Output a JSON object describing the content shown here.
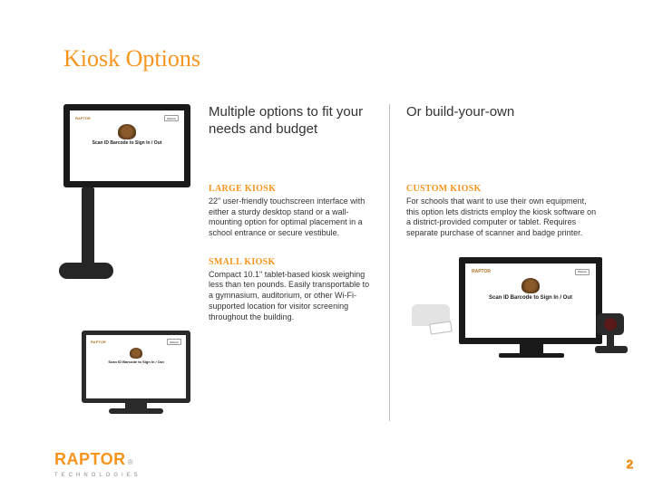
{
  "colors": {
    "accent": "#f7941d",
    "text": "#333333",
    "divider": "#bfbfbf",
    "device_black": "#1a1a1a",
    "background": "#ffffff"
  },
  "title": "Kiosk Options",
  "left_intro": "Multiple options to fit your needs and budget",
  "right_intro": "Or build-your-own",
  "sections": {
    "large": {
      "heading": "LARGE KIOSK",
      "body": "22\" user-friendly touchscreen interface with either a sturdy desktop stand or a wall-mounting option for optimal placement in a school entrance or secure vestibule."
    },
    "small": {
      "heading": "SMALL KIOSK",
      "body": "Compact 10.1\" tablet-based kiosk weighing less than ten pounds. Easily transportable to a gymnasium, auditorium, or other Wi-Fi-supported location for visitor screening throughout the building."
    },
    "custom": {
      "heading": "CUSTOM KIOSK",
      "body": "For schools that want to use their own equipment, this option lets districts employ the kiosk software on a district-provided computer or tablet. Requires separate purchase of scanner and badge printer."
    }
  },
  "screen_mock": {
    "brand": "RAPTOR",
    "button": "Return",
    "headline": "Scan ID Barcode to Sign In / Out"
  },
  "footer": {
    "brand": "RAPTOR",
    "registered": "®",
    "sub": "TECHNOLOGIES"
  },
  "page_number": "2"
}
